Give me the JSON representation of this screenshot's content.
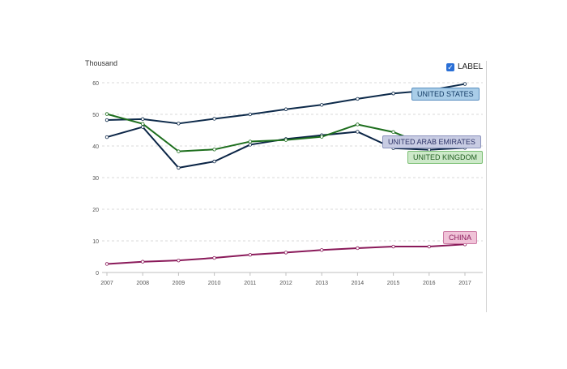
{
  "legend": {
    "label": "LABEL",
    "checkbox_icon": "checkmark-icon"
  },
  "chart_data": {
    "type": "line",
    "ylabel": "Thousand",
    "x": [
      "2007",
      "2008",
      "2009",
      "2010",
      "2011",
      "2012",
      "2013",
      "2014",
      "2015",
      "2016",
      "2017"
    ],
    "yticks": [
      0,
      10,
      20,
      30,
      40,
      50,
      60
    ],
    "ylim": [
      0,
      60
    ],
    "grid": true,
    "series": [
      {
        "name": "UNITED STATES",
        "color": "#0d2a4a",
        "tag_bg": "#a9cde8",
        "tag_border": "#5a8fc0",
        "tag_color": "#143c66",
        "values": [
          48.2,
          48.5,
          47.1,
          48.6,
          50.0,
          51.6,
          53.0,
          54.9,
          56.6,
          57.6,
          59.6
        ]
      },
      {
        "name": "UNITED ARAB EMIRATES",
        "color": "#0b2546",
        "tag_bg": "#c8cce3",
        "tag_border": "#8c93bd",
        "tag_color": "#2e3468",
        "values": [
          42.8,
          46.0,
          33.1,
          35.1,
          40.4,
          42.2,
          43.4,
          44.5,
          39.3,
          38.8,
          39.4
        ]
      },
      {
        "name": "UNITED KINGDOM",
        "color": "#1d6e1d",
        "tag_bg": "#cde9c9",
        "tag_border": "#7bbf73",
        "tag_color": "#225e22",
        "values": [
          50.1,
          47.0,
          38.3,
          38.9,
          41.4,
          41.9,
          42.9,
          46.8,
          44.4,
          40.0,
          40.4
        ]
      },
      {
        "name": "CHINA",
        "color": "#8a1a5a",
        "tag_bg": "#f0c3d8",
        "tag_border": "#cc7aa4",
        "tag_color": "#8a1a5a",
        "values": [
          2.7,
          3.4,
          3.8,
          4.6,
          5.6,
          6.3,
          7.1,
          7.7,
          8.2,
          8.2,
          8.9
        ]
      }
    ]
  }
}
